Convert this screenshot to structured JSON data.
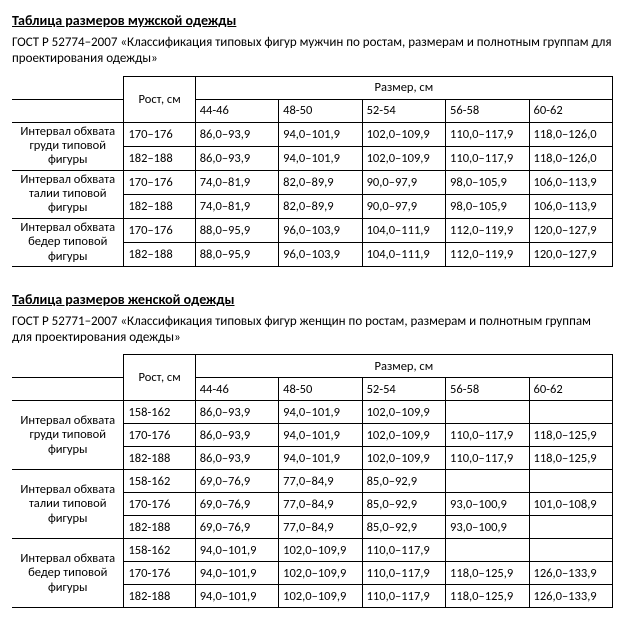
{
  "men": {
    "title": "Таблица размеров мужской одежды",
    "gost": "ГОСТ Р 52774–2007 «Классификация типовых фигур мужчин по ростам, размерам и полнотным группам для проектирования одежды»",
    "height_header": "Рост, см",
    "size_header": "Размер, см",
    "sizes": [
      "44-46",
      "48-50",
      "52-54",
      "56-58",
      "60-62"
    ],
    "groups": [
      {
        "label": "Интервал обхвата груди типовой фигуры",
        "rows": [
          {
            "height": "170–176",
            "cells": [
              "86,0–93,9",
              "94,0–101,9",
              "102,0–109,9",
              "110,0–117,9",
              "118,0–126,0"
            ]
          },
          {
            "height": "182–188",
            "cells": [
              "86,0–93,9",
              "94,0–101,9",
              "102,0–109,9",
              "110,0–117,9",
              "118,0–126,0"
            ]
          }
        ]
      },
      {
        "label": "Интервал обхвата талии типовой фигуры",
        "rows": [
          {
            "height": "170–176",
            "cells": [
              "74,0–81,9",
              "82,0–89,9",
              "90,0–97,9",
              "98,0–105,9",
              "106,0–113,9"
            ]
          },
          {
            "height": "182–188",
            "cells": [
              "74,0–81,9",
              "82,0–89,9",
              "90,0–97,9",
              "98,0–105,9",
              "106,0–113,9"
            ]
          }
        ]
      },
      {
        "label": "Интервал обхвата бедер типовой фигуры",
        "rows": [
          {
            "height": "170–176",
            "cells": [
              "88,0–95,9",
              "96,0–103,9",
              "104,0–111,9",
              "112,0–119,9",
              "120,0–127,9"
            ]
          },
          {
            "height": "182–188",
            "cells": [
              "88,0–95,9",
              "96,0–103,9",
              "104,0–111,9",
              "112,0–119,9",
              "120,0–127,9"
            ]
          }
        ]
      }
    ]
  },
  "women": {
    "title": "Таблица размеров женской одежды",
    "gost": "ГОСТ Р 52771–2007 «Классификация типовых фигур женщин по ростам, размерам и полнотным группам для проектирования одежды»",
    "height_header": "Рост, см",
    "size_header": "Размер, см",
    "sizes": [
      "44-46",
      "48-50",
      "52-54",
      "56-58",
      "60-62"
    ],
    "groups": [
      {
        "label": "Интервал обхвата груди типовой фигуры",
        "rows": [
          {
            "height": "158-162",
            "cells": [
              "86,0–93,9",
              "94,0–101,9",
              "102,0–109,9",
              "",
              ""
            ]
          },
          {
            "height": "170-176",
            "cells": [
              "86,0–93,9",
              "94,0–101,9",
              "102,0–109,9",
              "110,0–117,9",
              "118,0–125,9"
            ]
          },
          {
            "height": "182-188",
            "cells": [
              "86,0–93,9",
              "94,0–101,9",
              "102,0–109,9",
              "110,0–117,9",
              "118,0–125,9"
            ]
          }
        ]
      },
      {
        "label": "Интервал обхвата талии типовой фигуры",
        "rows": [
          {
            "height": "158-162",
            "cells": [
              "69,0–76,9",
              "77,0–84,9",
              "85,0–92,9",
              "",
              ""
            ]
          },
          {
            "height": "170-176",
            "cells": [
              "69,0–76,9",
              "77,0–84,9",
              "85,0–92,9",
              "93,0–100,9",
              "101,0–108,9"
            ]
          },
          {
            "height": "182-188",
            "cells": [
              "69,0–76,9",
              "77,0–84,9",
              "85,0–92,9",
              "93,0–100,9",
              ""
            ]
          }
        ]
      },
      {
        "label": "Интервал обхвата бедер типовой фигуры",
        "rows": [
          {
            "height": "158-162",
            "cells": [
              "94,0–101,9",
              "102,0–109,9",
              "110,0–117,9",
              "",
              ""
            ]
          },
          {
            "height": "170-176",
            "cells": [
              "94,0–101,9",
              "102,0–109,9",
              "110,0–117,9",
              "118,0–125,9",
              "126,0–133,9"
            ]
          },
          {
            "height": "182-188",
            "cells": [
              "94,0–101,9",
              "102,0–109,9",
              "110,0–117,9",
              "118,0–125,9",
              "126,0–133,9"
            ]
          }
        ]
      }
    ]
  }
}
